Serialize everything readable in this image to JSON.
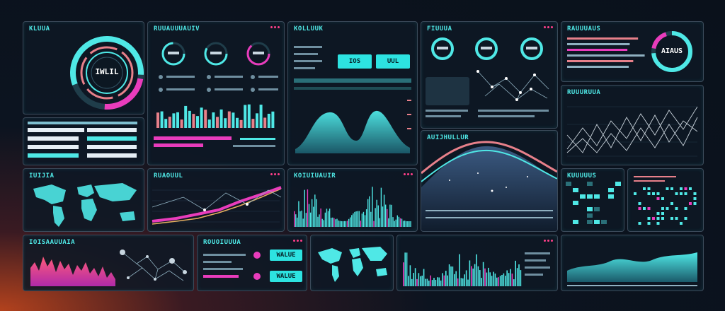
{
  "panels": {
    "radial": {
      "title": "KLUUA",
      "center": "IWLIL"
    },
    "gauges": {
      "title": "RUUAUUUAUIV"
    },
    "hero": {
      "title": "KOLLUUK",
      "btn_a": "IOS",
      "btn_b": "UUL"
    },
    "network": {
      "title": "FIUUUA"
    },
    "ring": {
      "title": "RAUUUAUS",
      "center": "AIAUS"
    },
    "lines": {
      "title": "RUUURUUA"
    },
    "mountain": {
      "title": "AUIJHULLUR"
    },
    "map1": {
      "title": "IUIJIA"
    },
    "trend": {
      "title": "RUAOUUL"
    },
    "spectrum": {
      "title": "KOIUIUAUIR"
    },
    "blocks": {
      "title": "KUUUUUS"
    },
    "bottom_area": {
      "title": "IOISAAUUAIA"
    },
    "bottom_ctrl": {
      "title": "ROUOIUUUA",
      "btn_a": "WALUE",
      "btn_b": "WALUE"
    }
  },
  "colors": {
    "cyan": "#4fe8e6",
    "magenta": "#e93cbc",
    "pink": "#ff3f8a",
    "salmon": "#e7808a"
  }
}
